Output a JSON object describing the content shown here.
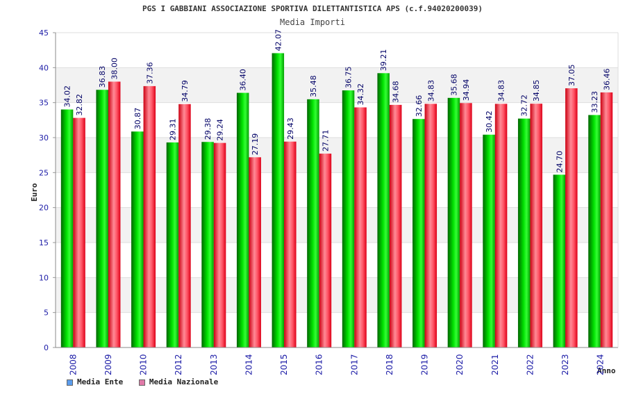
{
  "chart_data": {
    "type": "bar",
    "title": "PGS I GABBIANI ASSOCIAZIONE SPORTIVA DILETTANTISTICA APS (c.f.94020200039)",
    "subtitle": "Media Importi",
    "xlabel": "Anno",
    "ylabel": "Euro",
    "ylim": [
      0,
      45
    ],
    "yticks": [
      0,
      5,
      10,
      15,
      20,
      25,
      30,
      35,
      40,
      45
    ],
    "categories": [
      "2008",
      "2009",
      "2010",
      "2012",
      "2013",
      "2014",
      "2015",
      "2016",
      "2017",
      "2018",
      "2019",
      "2020",
      "2021",
      "2022",
      "2023",
      "2024"
    ],
    "series": [
      {
        "name": "Media Ente",
        "values": [
          34.02,
          36.83,
          30.87,
          29.31,
          29.38,
          36.4,
          42.07,
          35.48,
          36.75,
          39.21,
          32.66,
          35.68,
          30.42,
          32.72,
          24.7,
          33.23
        ],
        "labels": [
          "34.02",
          "36.83",
          "30.87",
          "29.31",
          "29.38",
          "36.40",
          "42.07",
          "35.48",
          "36.75",
          "39.21",
          "32.66",
          "35.68",
          "30.42",
          "32.72",
          "24.70",
          "33.23"
        ]
      },
      {
        "name": "Media Nazionale",
        "values": [
          32.82,
          38.0,
          37.36,
          34.79,
          29.24,
          27.19,
          29.43,
          27.71,
          34.32,
          34.68,
          34.83,
          34.94,
          34.83,
          34.85,
          37.05,
          36.46
        ],
        "labels": [
          "32.82",
          "38.00",
          "37.36",
          "34.79",
          "29.24",
          "27.19",
          "29.43",
          "27.71",
          "34.32",
          "34.68",
          "34.83",
          "34.94",
          "34.83",
          "34.85",
          "37.05",
          "36.46"
        ]
      }
    ],
    "legend": {
      "position": "bottom-left"
    },
    "grid": true
  },
  "colors": {
    "ente_bar": "#00cc00",
    "nazionale_bar": "#ee2a3c",
    "ente_swatch": "#5b9ded",
    "nazionale_swatch": "#e07aa8",
    "axis_text": "#1a1aa6",
    "label_text": "#000066",
    "band": "#f2f2f2",
    "grid": "#dddddd"
  }
}
